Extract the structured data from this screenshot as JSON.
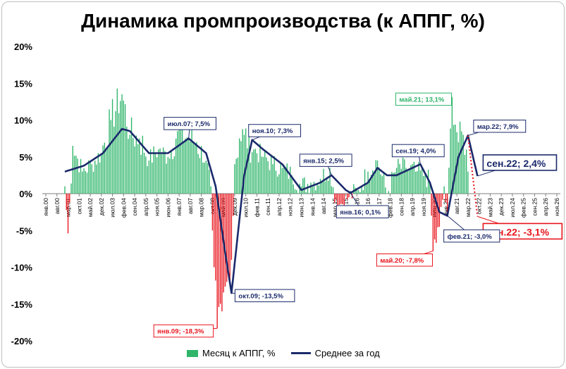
{
  "chart_data": {
    "type": "bar+line",
    "title": "Динамика промпроизводства (к АППГ, %)",
    "y_ticks": [
      "20%",
      "15%",
      "10%",
      "5%",
      "0%",
      "-5%",
      "-10%",
      "-15%",
      "-20%"
    ],
    "ylim": [
      -20,
      20
    ],
    "x_tick_labels": [
      "янв.00",
      "авг.00",
      "мар.01",
      "окт.01",
      "май.02",
      "дек.02",
      "июл.03",
      "фев.04",
      "сен.04",
      "апр.05",
      "ноя.05",
      "июн.06",
      "янв.07",
      "авг.07",
      "мар.08",
      "окт.08",
      "май.09",
      "дек.09",
      "июл.10",
      "фев.11",
      "сен.11",
      "апр.12",
      "ноя.12",
      "июн.13",
      "янв.14",
      "авг.14",
      "мар.15",
      "окт.15",
      "май.16",
      "дек.16",
      "июл.17",
      "фев.18",
      "сен.18",
      "апр.19",
      "ноя.19",
      "июн.20",
      "янв.21",
      "авг.21",
      "мар.22",
      "окт.22",
      "май.23",
      "дек.23",
      "июл.24",
      "фев.25",
      "сен.25",
      "апр.26",
      "ноя.26"
    ],
    "legend": [
      "Месяц к АППГ, %",
      "Среднее за год"
    ],
    "colors": {
      "positive": "#2eb56a",
      "negative": "#e8141c",
      "average": "#1b2a6b"
    },
    "monthly_anchors": [
      [
        "2001-01",
        1.0
      ],
      [
        "2001-03",
        -5.4
      ],
      [
        "2001-06",
        6.5
      ],
      [
        "2001-12",
        3.0
      ],
      [
        "2002-06",
        4.0
      ],
      [
        "2002-12",
        5.5
      ],
      [
        "2003-06",
        10.0
      ],
      [
        "2004-01",
        13.5
      ],
      [
        "2004-06",
        8.0
      ],
      [
        "2004-12",
        7.5
      ],
      [
        "2005-06",
        4.5
      ],
      [
        "2005-12",
        6.0
      ],
      [
        "2006-06",
        5.0
      ],
      [
        "2006-12",
        8.5
      ],
      [
        "2007-07",
        7.5
      ],
      [
        "2007-12",
        7.0
      ],
      [
        "2008-06",
        4.5
      ],
      [
        "2008-09",
        1.0
      ],
      [
        "2008-10",
        -5.0
      ],
      [
        "2008-11",
        -10.0
      ],
      [
        "2009-01",
        -18.3
      ],
      [
        "2009-04",
        -16.0
      ],
      [
        "2009-07",
        -12.0
      ],
      [
        "2009-10",
        -9.0
      ],
      [
        "2009-12",
        4.0
      ],
      [
        "2010-03",
        7.5
      ],
      [
        "2010-06",
        8.0
      ],
      [
        "2010-12",
        6.0
      ],
      [
        "2011-06",
        5.0
      ],
      [
        "2011-12",
        4.0
      ],
      [
        "2012-06",
        3.5
      ],
      [
        "2012-12",
        2.5
      ],
      [
        "2013-06",
        1.0
      ],
      [
        "2013-12",
        1.5
      ],
      [
        "2014-06",
        2.0
      ],
      [
        "2014-12",
        3.5
      ],
      [
        "2015-01",
        1.0
      ],
      [
        "2015-06",
        -1.5
      ],
      [
        "2015-12",
        -0.5
      ],
      [
        "2016-06",
        0.5
      ],
      [
        "2016-12",
        3.0
      ],
      [
        "2017-06",
        4.5
      ],
      [
        "2017-12",
        0.0
      ],
      [
        "2018-06",
        3.5
      ],
      [
        "2018-12",
        3.5
      ],
      [
        "2019-06",
        3.0
      ],
      [
        "2019-12",
        2.5
      ],
      [
        "2020-03",
        1.5
      ],
      [
        "2020-05",
        -7.8
      ],
      [
        "2020-09",
        -4.5
      ],
      [
        "2020-12",
        1.0
      ],
      [
        "2021-02",
        -3.0
      ],
      [
        "2021-05",
        13.1
      ],
      [
        "2021-09",
        7.0
      ],
      [
        "2021-12",
        8.0
      ],
      [
        "2022-02",
        6.0
      ],
      [
        "2022-03",
        3.0
      ]
    ],
    "annual_avg_anchors": [
      [
        "2001-01",
        3.0
      ],
      [
        "2002-01",
        3.8
      ],
      [
        "2003-01",
        5.5
      ],
      [
        "2004-01",
        8.8
      ],
      [
        "2004-06",
        8.5
      ],
      [
        "2005-06",
        5.5
      ],
      [
        "2006-06",
        5.5
      ],
      [
        "2007-07",
        7.5
      ],
      [
        "2008-06",
        5.5
      ],
      [
        "2008-12",
        1.0
      ],
      [
        "2009-06",
        -8.0
      ],
      [
        "2009-10",
        -13.5
      ],
      [
        "2010-06",
        2.5
      ],
      [
        "2010-11",
        7.3
      ],
      [
        "2011-06",
        6.0
      ],
      [
        "2012-06",
        4.0
      ],
      [
        "2013-06",
        0.5
      ],
      [
        "2014-06",
        1.5
      ],
      [
        "2015-01",
        2.5
      ],
      [
        "2015-10",
        0.5
      ],
      [
        "2016-01",
        0.1
      ],
      [
        "2016-12",
        1.5
      ],
      [
        "2017-06",
        3.5
      ],
      [
        "2017-12",
        2.5
      ],
      [
        "2018-06",
        2.5
      ],
      [
        "2019-09",
        4.0
      ],
      [
        "2020-03",
        1.5
      ],
      [
        "2020-09",
        -2.5
      ],
      [
        "2021-02",
        -3.0
      ],
      [
        "2021-09",
        5.0
      ],
      [
        "2022-03",
        7.9
      ],
      [
        "2022-09",
        2.4
      ]
    ],
    "forecast_points": [
      [
        "2022-09",
        2.4
      ],
      [
        "2022-09",
        -3.1
      ]
    ],
    "annotations": [
      {
        "text": "июл.07; 7,5%",
        "date": "2007-07",
        "value": 7.5,
        "color": "#1b2a6b"
      },
      {
        "text": "ноя.10; 7,3%",
        "date": "2010-11",
        "value": 7.3,
        "color": "#1b2a6b"
      },
      {
        "text": "янв.15; 2,5%",
        "date": "2015-01",
        "value": 2.5,
        "color": "#1b2a6b"
      },
      {
        "text": "сен.19; 4,0%",
        "date": "2019-09",
        "value": 4.0,
        "color": "#1b2a6b"
      },
      {
        "text": "май.21; 13,1%",
        "date": "2021-05",
        "value": 13.1,
        "color": "#2eb56a"
      },
      {
        "text": "мар.22; 7,9%",
        "date": "2022-03",
        "value": 7.9,
        "color": "#1b2a6b"
      },
      {
        "text": "сен.22; 2,4%",
        "date": "2022-09",
        "value": 2.4,
        "color": "#1b2a6b",
        "big": true
      },
      {
        "text": "сен.22; -3,1%",
        "date": "2022-09",
        "value": -3.1,
        "color": "#e8141c",
        "big": true
      },
      {
        "text": "фев.21; -3,0%",
        "date": "2021-02",
        "value": -3.0,
        "color": "#1b2a6b"
      },
      {
        "text": "май.20; -7,8%",
        "date": "2020-05",
        "value": -7.8,
        "color": "#e8141c"
      },
      {
        "text": "янв.16; 0,1%",
        "date": "2016-01",
        "value": 0.1,
        "color": "#1b2a6b"
      },
      {
        "text": "окт.09; -13,5%",
        "date": "2009-10",
        "value": -13.5,
        "color": "#1b2a6b"
      },
      {
        "text": "янв.09; -18,3%",
        "date": "2009-01",
        "value": -18.3,
        "color": "#e8141c"
      }
    ]
  }
}
